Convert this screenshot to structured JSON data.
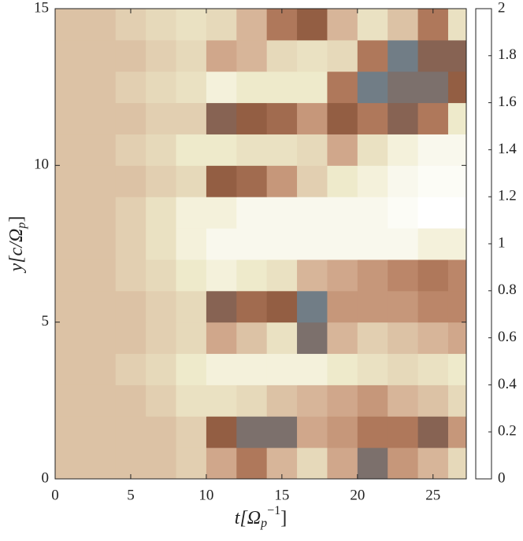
{
  "chart_data": {
    "type": "heatmap",
    "xlabel": {
      "main": "t[Ω",
      "sub": "p",
      "sup": "−1",
      "close": "]"
    },
    "ylabel": {
      "main": "y[c/Ω",
      "sub": "p",
      "close": "]"
    },
    "xbins": [
      0,
      2,
      4,
      6,
      8,
      10,
      12,
      14,
      16,
      18,
      20,
      22,
      24,
      26,
      27.2
    ],
    "ybins": [
      0,
      1,
      2,
      3,
      4,
      5,
      6,
      7,
      8,
      9,
      10,
      11,
      12,
      13,
      14,
      15
    ],
    "z": [
      [
        0.7,
        0.7,
        0.7,
        0.7,
        0.6,
        0.9,
        1.2,
        0.8,
        0.5,
        0.9,
        1.6,
        1.0,
        0.8,
        0.5
      ],
      [
        0.7,
        0.7,
        0.7,
        0.7,
        0.6,
        1.4,
        1.6,
        1.6,
        0.9,
        1.0,
        1.2,
        1.2,
        1.5,
        1.0
      ],
      [
        0.7,
        0.7,
        0.7,
        0.6,
        0.4,
        0.4,
        0.5,
        0.7,
        0.8,
        0.9,
        1.0,
        0.8,
        0.7,
        0.5
      ],
      [
        0.7,
        0.7,
        0.6,
        0.5,
        0.3,
        0.2,
        0.2,
        0.2,
        0.2,
        0.3,
        0.4,
        0.5,
        0.4,
        0.3
      ],
      [
        0.7,
        0.7,
        0.7,
        0.6,
        0.5,
        0.9,
        0.7,
        0.4,
        1.6,
        0.8,
        0.6,
        0.7,
        0.8,
        0.9
      ],
      [
        0.7,
        0.7,
        0.7,
        0.6,
        0.5,
        1.5,
        1.3,
        1.4,
        1.7,
        1.0,
        1.0,
        1.0,
        1.1,
        1.1
      ],
      [
        0.7,
        0.7,
        0.6,
        0.5,
        0.3,
        0.2,
        0.3,
        0.4,
        0.8,
        0.9,
        1.0,
        1.1,
        1.2,
        1.1
      ],
      [
        0.7,
        0.7,
        0.6,
        0.4,
        0.2,
        0.1,
        0.1,
        0.1,
        0.1,
        0.1,
        0.1,
        0.1,
        0.2,
        0.2
      ],
      [
        0.7,
        0.7,
        0.6,
        0.4,
        0.2,
        0.2,
        0.1,
        0.1,
        0.1,
        0.1,
        0.1,
        0.05,
        0,
        0
      ],
      [
        0.7,
        0.7,
        0.7,
        0.6,
        0.5,
        1.4,
        1.3,
        1.0,
        0.6,
        0.3,
        0.2,
        0.1,
        0.05,
        0.05
      ],
      [
        0.7,
        0.7,
        0.6,
        0.5,
        0.3,
        0.3,
        0.4,
        0.4,
        0.5,
        0.9,
        0.4,
        0.2,
        0.1,
        0.1
      ],
      [
        0.7,
        0.7,
        0.7,
        0.6,
        0.6,
        1.5,
        1.4,
        1.3,
        1.0,
        1.4,
        1.2,
        1.5,
        1.2,
        0.3
      ],
      [
        0.7,
        0.7,
        0.6,
        0.5,
        0.4,
        0.2,
        0.3,
        0.3,
        0.3,
        1.2,
        1.7,
        1.6,
        1.6,
        1.4
      ],
      [
        0.7,
        0.7,
        0.7,
        0.6,
        0.5,
        0.9,
        0.8,
        0.5,
        0.4,
        0.5,
        1.2,
        1.7,
        1.5,
        1.5
      ],
      [
        0.7,
        0.7,
        0.6,
        0.5,
        0.4,
        0.5,
        0.8,
        1.2,
        1.4,
        0.8,
        0.4,
        0.7,
        1.2,
        0.4
      ]
    ],
    "xlim": [
      0,
      27.2
    ],
    "ylim": [
      0,
      15
    ],
    "xticks": [
      0,
      5,
      10,
      15,
      20,
      25
    ],
    "yticks": [
      0,
      5,
      10,
      15
    ],
    "clim": [
      0,
      2
    ],
    "cticks": [
      0,
      0.2,
      0.4,
      0.6,
      0.8,
      1,
      1.2,
      1.4,
      1.6,
      1.8,
      2
    ],
    "colormap": [
      "#ffffff",
      "#efebcc",
      "#e3d3b4",
      "#d4ae92",
      "#b77f62",
      "#8f5a40",
      "#6f7f8a",
      "#62f0cc"
    ]
  }
}
